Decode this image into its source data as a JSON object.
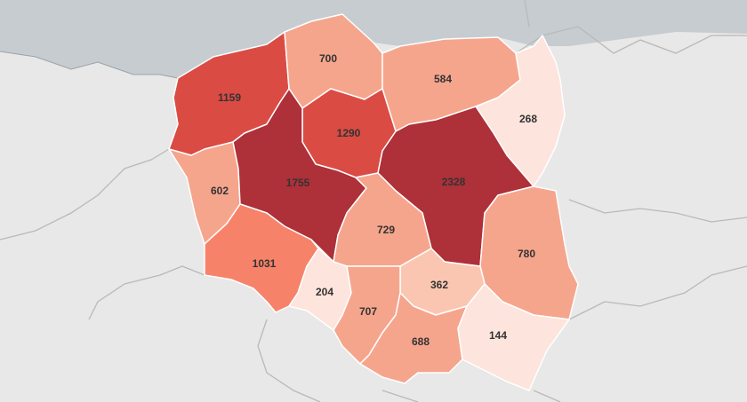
{
  "map": {
    "country": "Poland",
    "metric": "values by voivodeship",
    "colors": {
      "background": "#e8e8e8",
      "sea": "#c7ccd0",
      "region_border": "#ffffff",
      "neighbor_border": "#b9b9b9"
    },
    "regions": [
      {
        "id": "zachodniopomorskie",
        "value": 1159,
        "color": "#da4b44"
      },
      {
        "id": "pomorskie",
        "value": 700,
        "color": "#f6a58d"
      },
      {
        "id": "warminsko-mazurskie",
        "value": 584,
        "color": "#f6a58d"
      },
      {
        "id": "podlaskie",
        "value": 268,
        "color": "#fde4dc"
      },
      {
        "id": "kujawsko-pomorskie",
        "value": 1290,
        "color": "#da4b44"
      },
      {
        "id": "lubuskie",
        "value": 602,
        "color": "#f6a58d"
      },
      {
        "id": "wielkopolskie",
        "value": 1755,
        "color": "#ae3039"
      },
      {
        "id": "mazowieckie",
        "value": 2328,
        "color": "#ae3039"
      },
      {
        "id": "lodzkie",
        "value": 729,
        "color": "#f6a58d"
      },
      {
        "id": "lubelskie",
        "value": 780,
        "color": "#f6a58d"
      },
      {
        "id": "dolnoslaskie",
        "value": 1031,
        "color": "#f7826a"
      },
      {
        "id": "opolskie",
        "value": 204,
        "color": "#fde4dc"
      },
      {
        "id": "swietokrzyskie",
        "value": 362,
        "color": "#fbc6b1"
      },
      {
        "id": "slaskie",
        "value": 707,
        "color": "#f6a58d"
      },
      {
        "id": "malopolskie",
        "value": 688,
        "color": "#f6a58d"
      },
      {
        "id": "podkarpackie",
        "value": 144,
        "color": "#fde4dc"
      }
    ]
  }
}
